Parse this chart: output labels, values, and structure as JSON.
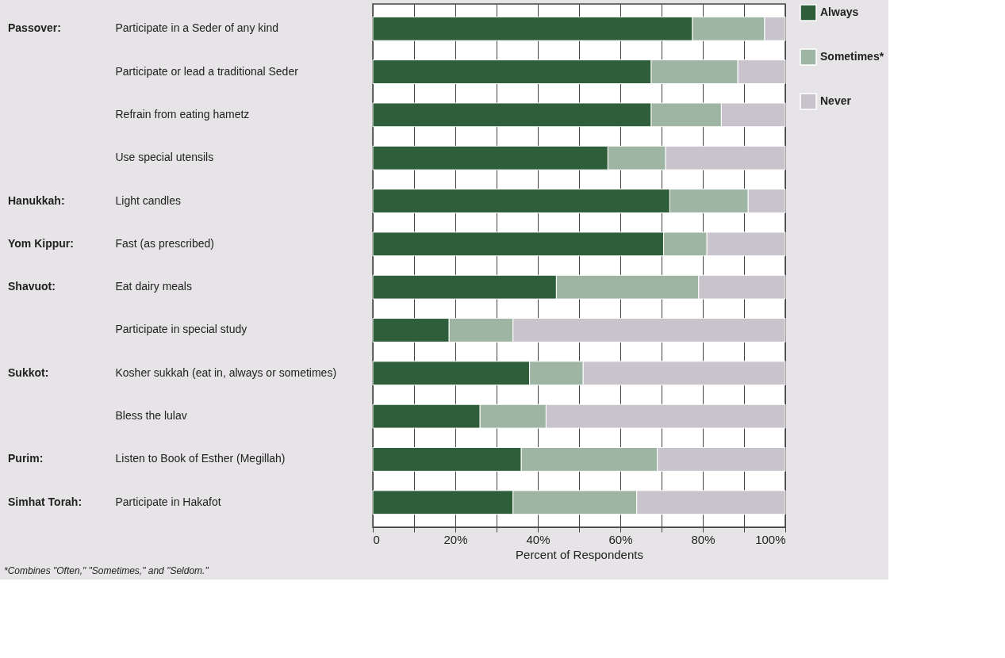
{
  "chart_data": {
    "type": "bar",
    "orientation": "horizontal",
    "stacked": true,
    "categories": [
      "Participate in a Seder of any kind",
      "Participate or lead a traditional Seder",
      "Refrain from eating hametz",
      "Use special utensils",
      "Light candles",
      "Fast (as prescribed)",
      "Eat dairy meals",
      "Participate in special study",
      "Kosher sukkah (eat in, always or sometimes)",
      "Bless the lulav",
      "Listen to Book of Esther (Megillah)",
      "Participate in Hakafot"
    ],
    "series": [
      {
        "name": "Always",
        "color": "#2e5e3a",
        "values": [
          77.5,
          67.5,
          67.5,
          57,
          72,
          70.5,
          44.5,
          18.5,
          38,
          26,
          36,
          34
        ]
      },
      {
        "name": "Sometimes*",
        "color": "#9fb5a3",
        "values": [
          17.5,
          21,
          17,
          14,
          19,
          10.5,
          34.5,
          15.5,
          13,
          16,
          33,
          30
        ]
      },
      {
        "name": "Never",
        "color": "#c9c4cc",
        "values": [
          5,
          11.5,
          15.5,
          29,
          9,
          19,
          21,
          66,
          49,
          58,
          31,
          36
        ]
      }
    ],
    "xlim": [
      0,
      100
    ],
    "xticks": [
      0,
      {
        "value": 10,
        "label": null
      },
      {
        "value": 20,
        "label": "20%"
      },
      {
        "value": 30,
        "label": null
      },
      {
        "value": 40,
        "label": "40%"
      },
      {
        "value": 50,
        "label": null
      },
      {
        "value": 60,
        "label": "60%"
      },
      {
        "value": 70,
        "label": null
      },
      {
        "value": 80,
        "label": "80%"
      },
      {
        "value": 90,
        "label": null
      },
      {
        "value": 100,
        "label": "100%"
      }
    ],
    "xlabel": "Percent of Respondents",
    "grid": "x",
    "legend": "top right",
    "y2_categories": [
      "Passover:",
      null,
      null,
      null,
      "Hanukkah:",
      "Yom Kippur:",
      "Shavuot:",
      null,
      "Sukkot:",
      null,
      "Purim:",
      "Simhat Torah:"
    ],
    "annotations": [
      "*Combines \"Often,\" \"Sometimes,\" and \"Seldom.\""
    ]
  }
}
